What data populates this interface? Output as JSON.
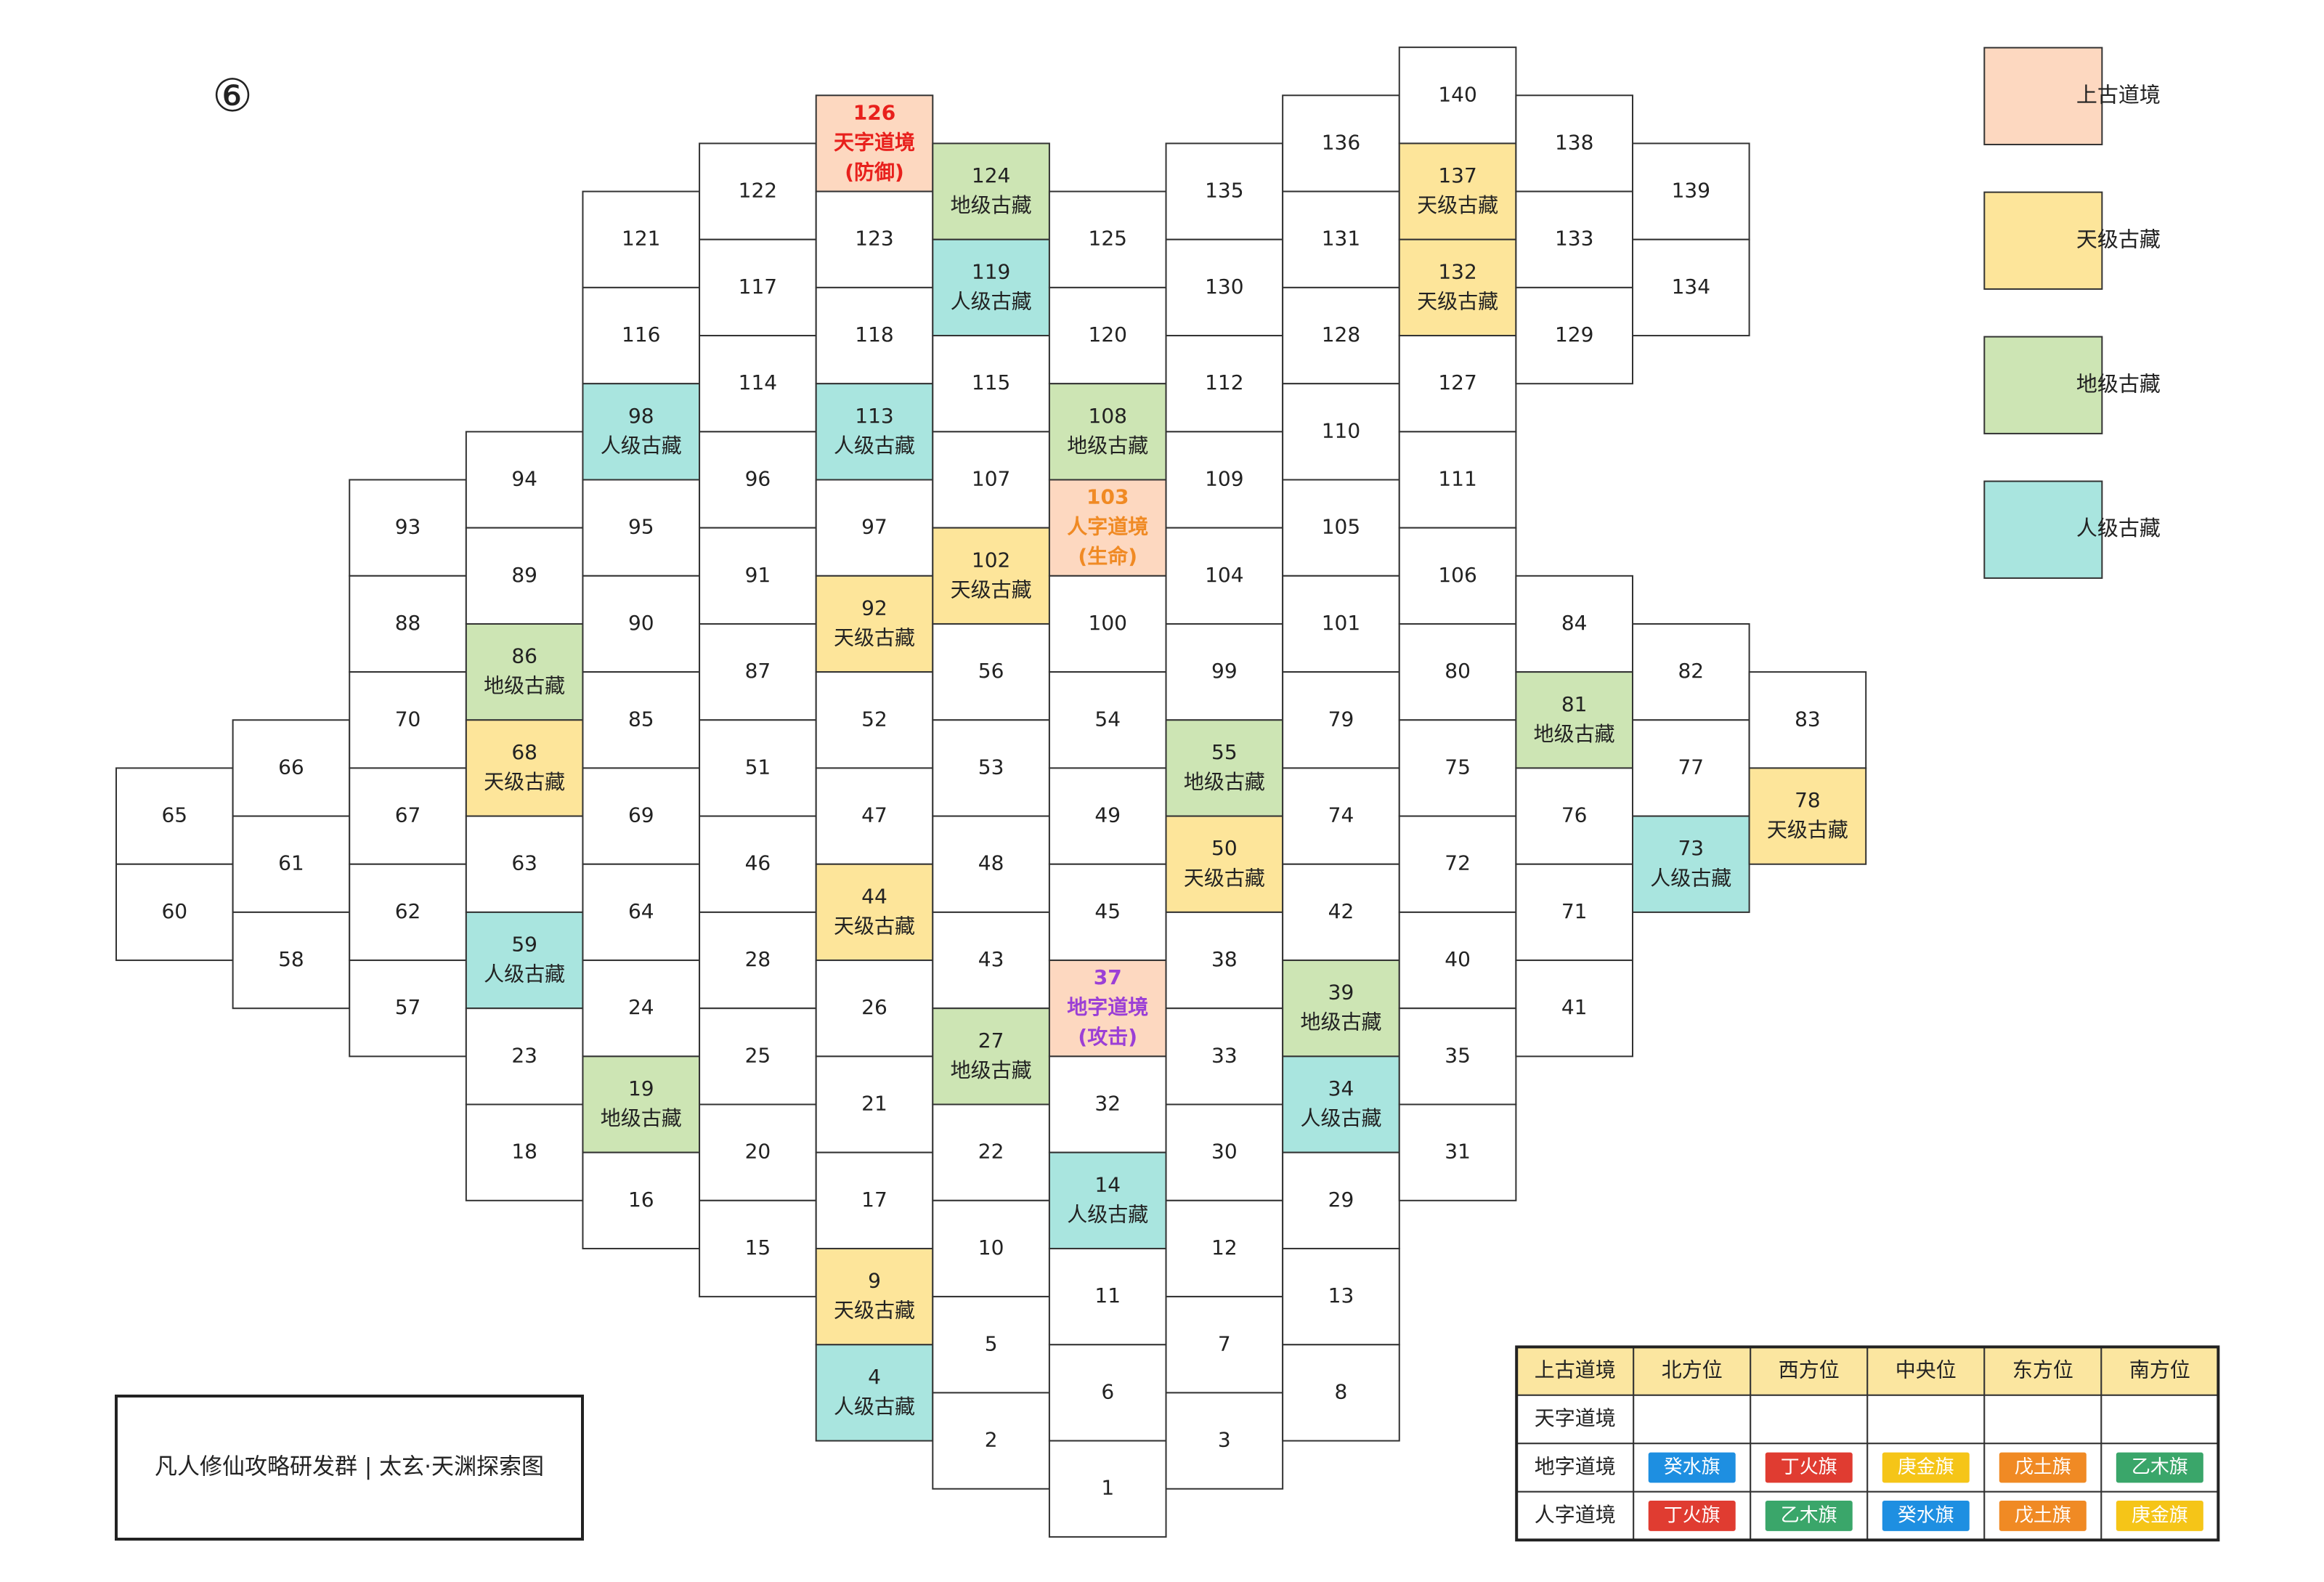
{
  "page_number": "⑥",
  "footer": "凡人修仙攻略研发群 | 太玄·天渊探索图",
  "legend": [
    {
      "label": "上古道境",
      "color": "#fdd8c0"
    },
    {
      "label": "天级古藏",
      "color": "#fde59a"
    },
    {
      "label": "地级古藏",
      "color": "#cde5b4"
    },
    {
      "label": "人级古藏",
      "color": "#a9e5df"
    }
  ],
  "cells": [
    {
      "number": 65
    },
    {
      "number": 60
    },
    {
      "number": 66
    },
    {
      "number": 61
    },
    {
      "number": 58
    },
    {
      "number": 93
    },
    {
      "number": 88
    },
    {
      "number": 70
    },
    {
      "number": 67
    },
    {
      "number": 62
    },
    {
      "number": 57
    },
    {
      "number": 94
    },
    {
      "number": 89
    },
    {
      "number": 86,
      "label": "地级古藏"
    },
    {
      "number": 68,
      "label": "天级古藏"
    },
    {
      "number": 63
    },
    {
      "number": 59,
      "label": "人级古藏"
    },
    {
      "number": 23
    },
    {
      "number": 18
    },
    {
      "number": 121
    },
    {
      "number": 116
    },
    {
      "number": 98,
      "label": "人级古藏"
    },
    {
      "number": 95
    },
    {
      "number": 90
    },
    {
      "number": 85
    },
    {
      "number": 69
    },
    {
      "number": 64
    },
    {
      "number": 24
    },
    {
      "number": 19,
      "label": "地级古藏"
    },
    {
      "number": 16
    },
    {
      "number": 122
    },
    {
      "number": 117
    },
    {
      "number": 114
    },
    {
      "number": 96
    },
    {
      "number": 91
    },
    {
      "number": 87
    },
    {
      "number": 51
    },
    {
      "number": 46
    },
    {
      "number": 28
    },
    {
      "number": 25
    },
    {
      "number": 20
    },
    {
      "number": 15
    },
    {
      "number": 126,
      "label": "天字道境",
      "effect": "(防御)",
      "text_color": "#e8201c"
    },
    {
      "number": 123
    },
    {
      "number": 118
    },
    {
      "number": 113,
      "label": "人级古藏"
    },
    {
      "number": 97
    },
    {
      "number": 92,
      "label": "天级古藏"
    },
    {
      "number": 52
    },
    {
      "number": 47
    },
    {
      "number": 44,
      "label": "天级古藏"
    },
    {
      "number": 26
    },
    {
      "number": 21
    },
    {
      "number": 17
    },
    {
      "number": 9,
      "label": "天级古藏"
    },
    {
      "number": 4,
      "label": "人级古藏"
    },
    {
      "number": 124,
      "label": "地级古藏"
    },
    {
      "number": 119,
      "label": "人级古藏"
    },
    {
      "number": 115
    },
    {
      "number": 107
    },
    {
      "number": 102,
      "label": "天级古藏"
    },
    {
      "number": 56
    },
    {
      "number": 53
    },
    {
      "number": 48
    },
    {
      "number": 43
    },
    {
      "number": 27,
      "label": "地级古藏"
    },
    {
      "number": 22
    },
    {
      "number": 10
    },
    {
      "number": 5
    },
    {
      "number": 2
    },
    {
      "number": 125
    },
    {
      "number": 120
    },
    {
      "number": 108,
      "label": "地级古藏"
    },
    {
      "number": 103,
      "label": "人字道境",
      "effect": "(生命)",
      "text_color": "#f08a24"
    },
    {
      "number": 100
    },
    {
      "number": 54
    },
    {
      "number": 49
    },
    {
      "number": 45
    },
    {
      "number": 37,
      "label": "地字道境",
      "effect": "(攻击)",
      "text_color": "#9b3fd6"
    },
    {
      "number": 32
    },
    {
      "number": 14,
      "label": "人级古藏"
    },
    {
      "number": 11
    },
    {
      "number": 6
    },
    {
      "number": 1
    },
    {
      "number": 135
    },
    {
      "number": 130
    },
    {
      "number": 112
    },
    {
      "number": 109
    },
    {
      "number": 104
    },
    {
      "number": 99
    },
    {
      "number": 55,
      "label": "地级古藏"
    },
    {
      "number": 50,
      "label": "天级古藏"
    },
    {
      "number": 38
    },
    {
      "number": 33
    },
    {
      "number": 30
    },
    {
      "number": 12
    },
    {
      "number": 7
    },
    {
      "number": 3
    },
    {
      "number": 136
    },
    {
      "number": 131
    },
    {
      "number": 128
    },
    {
      "number": 110
    },
    {
      "number": 105
    },
    {
      "number": 101
    },
    {
      "number": 79
    },
    {
      "number": 74
    },
    {
      "number": 42
    },
    {
      "number": 39,
      "label": "地级古藏"
    },
    {
      "number": 34,
      "label": "人级古藏"
    },
    {
      "number": 29
    },
    {
      "number": 13
    },
    {
      "number": 8
    },
    {
      "number": 140
    },
    {
      "number": 137,
      "label": "天级古藏"
    },
    {
      "number": 132,
      "label": "天级古藏"
    },
    {
      "number": 127
    },
    {
      "number": 111
    },
    {
      "number": 106
    },
    {
      "number": 80
    },
    {
      "number": 75
    },
    {
      "number": 72
    },
    {
      "number": 40
    },
    {
      "number": 35
    },
    {
      "number": 31
    },
    {
      "number": 138
    },
    {
      "number": 133
    },
    {
      "number": 129
    },
    {
      "number": 84
    },
    {
      "number": 81,
      "label": "地级古藏"
    },
    {
      "number": 76
    },
    {
      "number": 71
    },
    {
      "number": 41
    },
    {
      "number": 139
    },
    {
      "number": 134
    },
    {
      "number": 82
    },
    {
      "number": 77
    },
    {
      "number": 73,
      "label": "人级古藏"
    },
    {
      "number": 83
    },
    {
      "number": 78,
      "label": "天级古藏"
    }
  ],
  "table": {
    "header": [
      "上古道境",
      "北方位",
      "西方位",
      "中央位",
      "东方位",
      "南方位"
    ],
    "rows": [
      {
        "label": "天字道境",
        "cells": [
          null,
          null,
          null,
          null,
          null
        ]
      },
      {
        "label": "地字道境",
        "cells": [
          {
            "text": "癸水旗",
            "color": "#1e8fe1"
          },
          {
            "text": "丁火旗",
            "color": "#e03c31"
          },
          {
            "text": "庚金旗",
            "color": "#f5c518"
          },
          {
            "text": "戊土旗",
            "color": "#f08a24"
          },
          {
            "text": "乙木旗",
            "color": "#3aa66a"
          }
        ]
      },
      {
        "label": "人字道境",
        "cells": [
          {
            "text": "丁火旗",
            "color": "#e03c31"
          },
          {
            "text": "乙木旗",
            "color": "#3aa66a"
          },
          {
            "text": "癸水旗",
            "color": "#1e8fe1"
          },
          {
            "text": "戊土旗",
            "color": "#f08a24"
          },
          {
            "text": "庚金旗",
            "color": "#f5c518"
          }
        ]
      }
    ]
  }
}
